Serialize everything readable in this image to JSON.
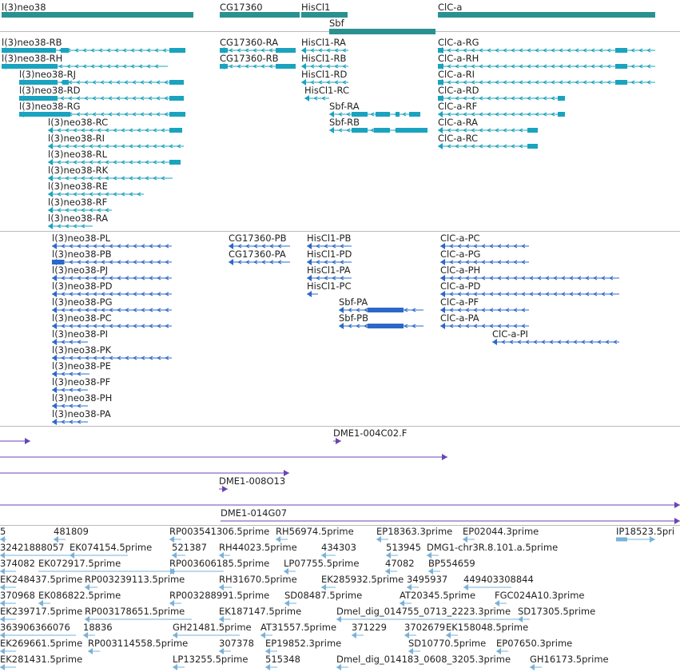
{
  "colors": {
    "gene": "#2a9191",
    "mrna": "#1ba3bf",
    "protein": "#2c68c8",
    "clone": "#6a45b4",
    "est": "#7ab2d8",
    "divider": "#bbbbbb"
  },
  "tracks": [
    {
      "id": "gene",
      "color": "#2a9191",
      "items": [
        {
          "label": "l(3)neo38",
          "strand": "none"
        },
        {
          "label": "CG17360",
          "strand": "none"
        },
        {
          "label": "HisCl1",
          "strand": "none"
        },
        {
          "label": "Sbf",
          "strand": "none"
        },
        {
          "label": "ClC-a",
          "strand": "none"
        }
      ]
    },
    {
      "id": "mrna",
      "color": "#1ba3bf",
      "items": [
        {
          "label": "l(3)neo38-RB",
          "strand": "-"
        },
        {
          "label": "l(3)neo38-RH",
          "strand": "-"
        },
        {
          "label": "l(3)neo38-RJ",
          "strand": "-"
        },
        {
          "label": "l(3)neo38-RD",
          "strand": "-"
        },
        {
          "label": "l(3)neo38-RG",
          "strand": "-"
        },
        {
          "label": "l(3)neo38-RC",
          "strand": "-"
        },
        {
          "label": "l(3)neo38-RI",
          "strand": "-"
        },
        {
          "label": "l(3)neo38-RL",
          "strand": "-"
        },
        {
          "label": "l(3)neo38-RK",
          "strand": "-"
        },
        {
          "label": "l(3)neo38-RE",
          "strand": "-"
        },
        {
          "label": "l(3)neo38-RF",
          "strand": "-"
        },
        {
          "label": "l(3)neo38-RA",
          "strand": "-"
        },
        {
          "label": "CG17360-RA",
          "strand": "-"
        },
        {
          "label": "CG17360-RB",
          "strand": "-"
        },
        {
          "label": "HisCl1-RA",
          "strand": "-"
        },
        {
          "label": "HisCl1-RB",
          "strand": "-"
        },
        {
          "label": "HisCl1-RD",
          "strand": "-"
        },
        {
          "label": "HisCl1-RC",
          "strand": "-"
        },
        {
          "label": "Sbf-RA",
          "strand": "-"
        },
        {
          "label": "Sbf-RB",
          "strand": "-"
        },
        {
          "label": "ClC-a-RG",
          "strand": "-"
        },
        {
          "label": "ClC-a-RH",
          "strand": "-"
        },
        {
          "label": "ClC-a-RI",
          "strand": "-"
        },
        {
          "label": "ClC-a-RD",
          "strand": "-"
        },
        {
          "label": "ClC-a-RF",
          "strand": "-"
        },
        {
          "label": "ClC-a-RA",
          "strand": "-"
        },
        {
          "label": "ClC-a-RC",
          "strand": "-"
        }
      ]
    },
    {
      "id": "protein",
      "color": "#2c68c8",
      "items": [
        {
          "label": "l(3)neo38-PL",
          "strand": "-"
        },
        {
          "label": "l(3)neo38-PB",
          "strand": "-"
        },
        {
          "label": "l(3)neo38-PJ",
          "strand": "-"
        },
        {
          "label": "l(3)neo38-PD",
          "strand": "-"
        },
        {
          "label": "l(3)neo38-PG",
          "strand": "-"
        },
        {
          "label": "l(3)neo38-PC",
          "strand": "-"
        },
        {
          "label": "l(3)neo38-PI",
          "strand": "-"
        },
        {
          "label": "l(3)neo38-PK",
          "strand": "-"
        },
        {
          "label": "l(3)neo38-PE",
          "strand": "-"
        },
        {
          "label": "l(3)neo38-PF",
          "strand": "-"
        },
        {
          "label": "l(3)neo38-PH",
          "strand": "-"
        },
        {
          "label": "l(3)neo38-PA",
          "strand": "-"
        },
        {
          "label": "CG17360-PB",
          "strand": "-"
        },
        {
          "label": "CG17360-PA",
          "strand": "-"
        },
        {
          "label": "HisCl1-PB",
          "strand": "-"
        },
        {
          "label": "HisCl1-PD",
          "strand": "-"
        },
        {
          "label": "HisCl1-PA",
          "strand": "-"
        },
        {
          "label": "HisCl1-PC",
          "strand": "-"
        },
        {
          "label": "Sbf-PA",
          "strand": "-"
        },
        {
          "label": "Sbf-PB",
          "strand": "-"
        },
        {
          "label": "ClC-a-PC",
          "strand": "-"
        },
        {
          "label": "ClC-a-PG",
          "strand": "-"
        },
        {
          "label": "ClC-a-PH",
          "strand": "-"
        },
        {
          "label": "ClC-a-PD",
          "strand": "-"
        },
        {
          "label": "ClC-a-PF",
          "strand": "-"
        },
        {
          "label": "ClC-a-PA",
          "strand": "-"
        },
        {
          "label": "ClC-a-PI",
          "strand": "-"
        }
      ]
    },
    {
      "id": "clone",
      "color": "#6a45b4",
      "items": [
        {
          "label": "",
          "strand": "+"
        },
        {
          "label": "DME1-004C02.F",
          "strand": "+"
        },
        {
          "label": "",
          "strand": "+"
        },
        {
          "label": "",
          "strand": "+"
        },
        {
          "label": "DME1-008O13",
          "strand": "+"
        },
        {
          "label": "",
          "strand": "+"
        },
        {
          "label": "DME1-014G07",
          "strand": "+"
        }
      ]
    },
    {
      "id": "est",
      "color": "#7ab2d8",
      "items": [
        {
          "label": "5",
          "strand": "-"
        },
        {
          "label": "481809",
          "strand": "-"
        },
        {
          "label": "RP003541306.5prime",
          "strand": "-"
        },
        {
          "label": "RH56974.5prime",
          "strand": "-"
        },
        {
          "label": "EP18363.3prime",
          "strand": "-"
        },
        {
          "label": "EP02044.3prime",
          "strand": "-"
        },
        {
          "label": "IP18523.5pri",
          "strand": "+"
        },
        {
          "label": "32421888057",
          "strand": "-"
        },
        {
          "label": "EK074154.5prime",
          "strand": "-"
        },
        {
          "label": "521387",
          "strand": "-"
        },
        {
          "label": "RH44023.5prime",
          "strand": "-"
        },
        {
          "label": "434303",
          "strand": "-"
        },
        {
          "label": "513945",
          "strand": "-"
        },
        {
          "label": "DMG1-chr3R.8.101.a.5prime",
          "strand": "-"
        },
        {
          "label": "374082",
          "strand": "-"
        },
        {
          "label": "EK072917.5prime",
          "strand": "+"
        },
        {
          "label": "RP003606185.5prime",
          "strand": "-"
        },
        {
          "label": "LP07755.5prime",
          "strand": "-"
        },
        {
          "label": "47082",
          "strand": "-"
        },
        {
          "label": "BP554659",
          "strand": "-"
        },
        {
          "label": "EK248437.5prime",
          "strand": "-"
        },
        {
          "label": "RP003239113.5prime",
          "strand": "-"
        },
        {
          "label": "RH31670.5prime",
          "strand": "-"
        },
        {
          "label": "EK285932.5prime",
          "strand": "-"
        },
        {
          "label": "3495937",
          "strand": "-"
        },
        {
          "label": "449403308844",
          "strand": "-"
        },
        {
          "label": "370968",
          "strand": "-"
        },
        {
          "label": "EK086822.5prime",
          "strand": "-"
        },
        {
          "label": "RP003288991.5prime",
          "strand": "-"
        },
        {
          "label": "SD08487.5prime",
          "strand": "-"
        },
        {
          "label": "AT20345.5prime",
          "strand": "-"
        },
        {
          "label": "FGC024A10.3prime",
          "strand": "-"
        },
        {
          "label": "EK239717.5prime",
          "strand": "-"
        },
        {
          "label": "RP003178651.5prime",
          "strand": "-"
        },
        {
          "label": "EK187147.5prime",
          "strand": "-"
        },
        {
          "label": "Dmel_dig_014755_0713_2223.3prime",
          "strand": "-"
        },
        {
          "label": "SD17305.5prime",
          "strand": "-"
        },
        {
          "label": "363906366076",
          "strand": "-"
        },
        {
          "label": "18836",
          "strand": "-"
        },
        {
          "label": "GH21481.5prime",
          "strand": "-"
        },
        {
          "label": "AT31557.5prime",
          "strand": "-"
        },
        {
          "label": "371229",
          "strand": "-"
        },
        {
          "label": "3702679",
          "strand": "-"
        },
        {
          "label": "EK158048.5prime",
          "strand": "-"
        },
        {
          "label": "EK269661.5prime",
          "strand": "-"
        },
        {
          "label": "RP003114558.5prime",
          "strand": "-"
        },
        {
          "label": "307378",
          "strand": "-"
        },
        {
          "label": "EP19852.3prime",
          "strand": "-"
        },
        {
          "label": "SD10770.5prime",
          "strand": "-"
        },
        {
          "label": "EP07650.3prime",
          "strand": "-"
        },
        {
          "label": "EK281431.5prime",
          "strand": "-"
        },
        {
          "label": "LP13255.5prime",
          "strand": "-"
        },
        {
          "label": "515348",
          "strand": "-"
        },
        {
          "label": "Dmel_dig_014183_0608_3205.3prime",
          "strand": "-"
        },
        {
          "label": "GH16173.5prime",
          "strand": "-"
        }
      ]
    }
  ]
}
